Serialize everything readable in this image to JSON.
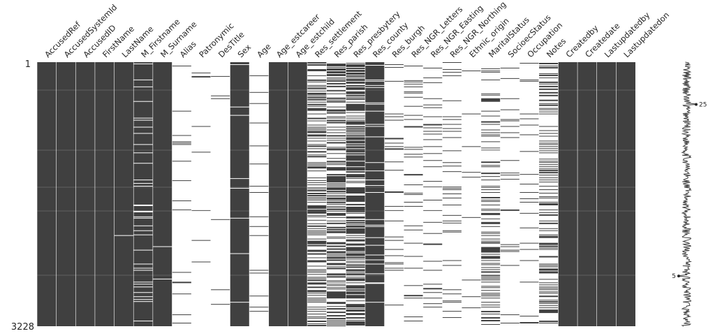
{
  "chart_data": {
    "type": "heatmap",
    "subtype": "missingno-matrix",
    "title": "",
    "xlabel": "",
    "ylabel": "",
    "row_range": [
      1,
      3228
    ],
    "row_tick_labels": [
      "1",
      "3228"
    ],
    "fill_color": "#404040",
    "background_color": "#ffffff",
    "columns": [
      {
        "name": "AccusedRef",
        "completeness": 1.0
      },
      {
        "name": "AccusedSystemId",
        "completeness": 1.0
      },
      {
        "name": "AccusedID",
        "completeness": 1.0
      },
      {
        "name": "FirstName",
        "completeness": 1.0
      },
      {
        "name": "LastName",
        "completeness": 0.995
      },
      {
        "name": "M_Firstname",
        "completeness": 0.9
      },
      {
        "name": "M_Surname",
        "completeness": 0.99
      },
      {
        "name": "Alias",
        "completeness": 0.03
      },
      {
        "name": "Patronymic",
        "completeness": 0.02
      },
      {
        "name": "DesTitle",
        "completeness": 0.01
      },
      {
        "name": "Sex",
        "completeness": 0.97
      },
      {
        "name": "Age",
        "completeness": 0.04
      },
      {
        "name": "Age_estcareer",
        "completeness": 1.0
      },
      {
        "name": "Age_estchild",
        "completeness": 1.0
      },
      {
        "name": "Res_settlement",
        "completeness": 0.45
      },
      {
        "name": "Res_parish",
        "completeness": 0.5
      },
      {
        "name": "Res_presbytery",
        "completeness": 0.62
      },
      {
        "name": "Res_county",
        "completeness": 0.93
      },
      {
        "name": "Res_burgh",
        "completeness": 0.06
      },
      {
        "name": "Res_NGR_Letters",
        "completeness": 0.08
      },
      {
        "name": "Res_NGR_Easting",
        "completeness": 0.07
      },
      {
        "name": "Res_NGR_Northing",
        "completeness": 0.07
      },
      {
        "name": "Ethnic_origin",
        "completeness": 0.01
      },
      {
        "name": "MaritalStatus",
        "completeness": 0.25
      },
      {
        "name": "SocioecStatus",
        "completeness": 0.07
      },
      {
        "name": "Occupation",
        "completeness": 0.04
      },
      {
        "name": "Notes",
        "completeness": 0.3
      },
      {
        "name": "Createdby",
        "completeness": 1.0
      },
      {
        "name": "Createdate",
        "completeness": 1.0
      },
      {
        "name": "Lastupdatedby",
        "completeness": 1.0
      },
      {
        "name": "Lastupdatedon",
        "completeness": 1.0
      }
    ],
    "sparkline": {
      "min_label": "5",
      "max_label": "25",
      "min_value": 5,
      "max_value": 25
    }
  }
}
